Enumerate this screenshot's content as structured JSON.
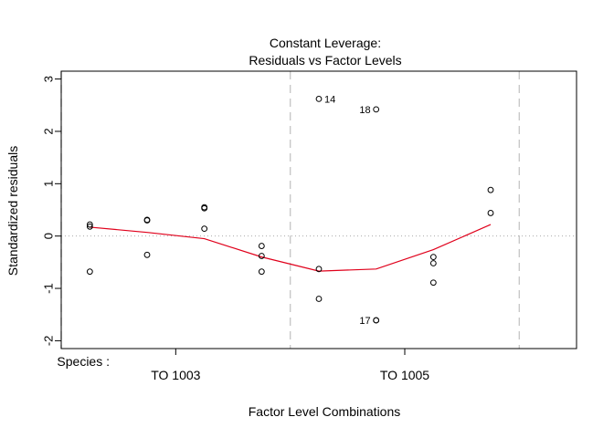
{
  "chart_data": {
    "type": "scatter",
    "title": [
      "Constant Leverage:",
      "Residuals vs Factor Levels"
    ],
    "xlabel": "Factor Level Combinations",
    "ylabel": "Standardized residuals",
    "factor_label": "Species :",
    "xlim": [
      -0.5,
      8.5
    ],
    "ylim": [
      -2.15,
      3.15
    ],
    "yticks": [
      -2,
      -1,
      0,
      1,
      2,
      3
    ],
    "xticks": [
      {
        "label": "TO 1003",
        "x": 1.5
      },
      {
        "label": "TO 1005",
        "x": 5.5
      }
    ],
    "dashed_vlines": [
      -0.5,
      3.5,
      7.5
    ],
    "zero_line": 0,
    "series": [
      {
        "type": "points",
        "x": [
          0,
          0,
          0,
          1,
          1,
          1,
          2,
          2,
          2,
          3,
          3,
          3,
          4,
          4,
          4,
          5,
          5,
          5,
          6,
          6,
          6,
          7,
          7
        ],
        "y": [
          0.22,
          0.18,
          -0.68,
          0.31,
          0.3,
          -0.36,
          0.55,
          0.53,
          0.14,
          -0.19,
          -0.38,
          -0.68,
          2.62,
          -0.63,
          -1.2,
          2.42,
          -1.61,
          -1.61,
          -0.4,
          -0.52,
          -0.89,
          0.88,
          0.44
        ]
      },
      {
        "type": "smoother",
        "color": "#e0001b",
        "x": [
          0,
          1,
          2,
          3,
          4,
          5,
          6,
          7
        ],
        "y": [
          0.17,
          0.07,
          -0.05,
          -0.4,
          -0.67,
          -0.63,
          -0.26,
          0.22
        ]
      }
    ],
    "annotations": [
      {
        "label": "14",
        "x": 4,
        "y": 2.62,
        "side": "right"
      },
      {
        "label": "18",
        "x": 5,
        "y": 2.42,
        "side": "left"
      },
      {
        "label": "17",
        "x": 5,
        "y": -1.61,
        "side": "left"
      }
    ]
  }
}
